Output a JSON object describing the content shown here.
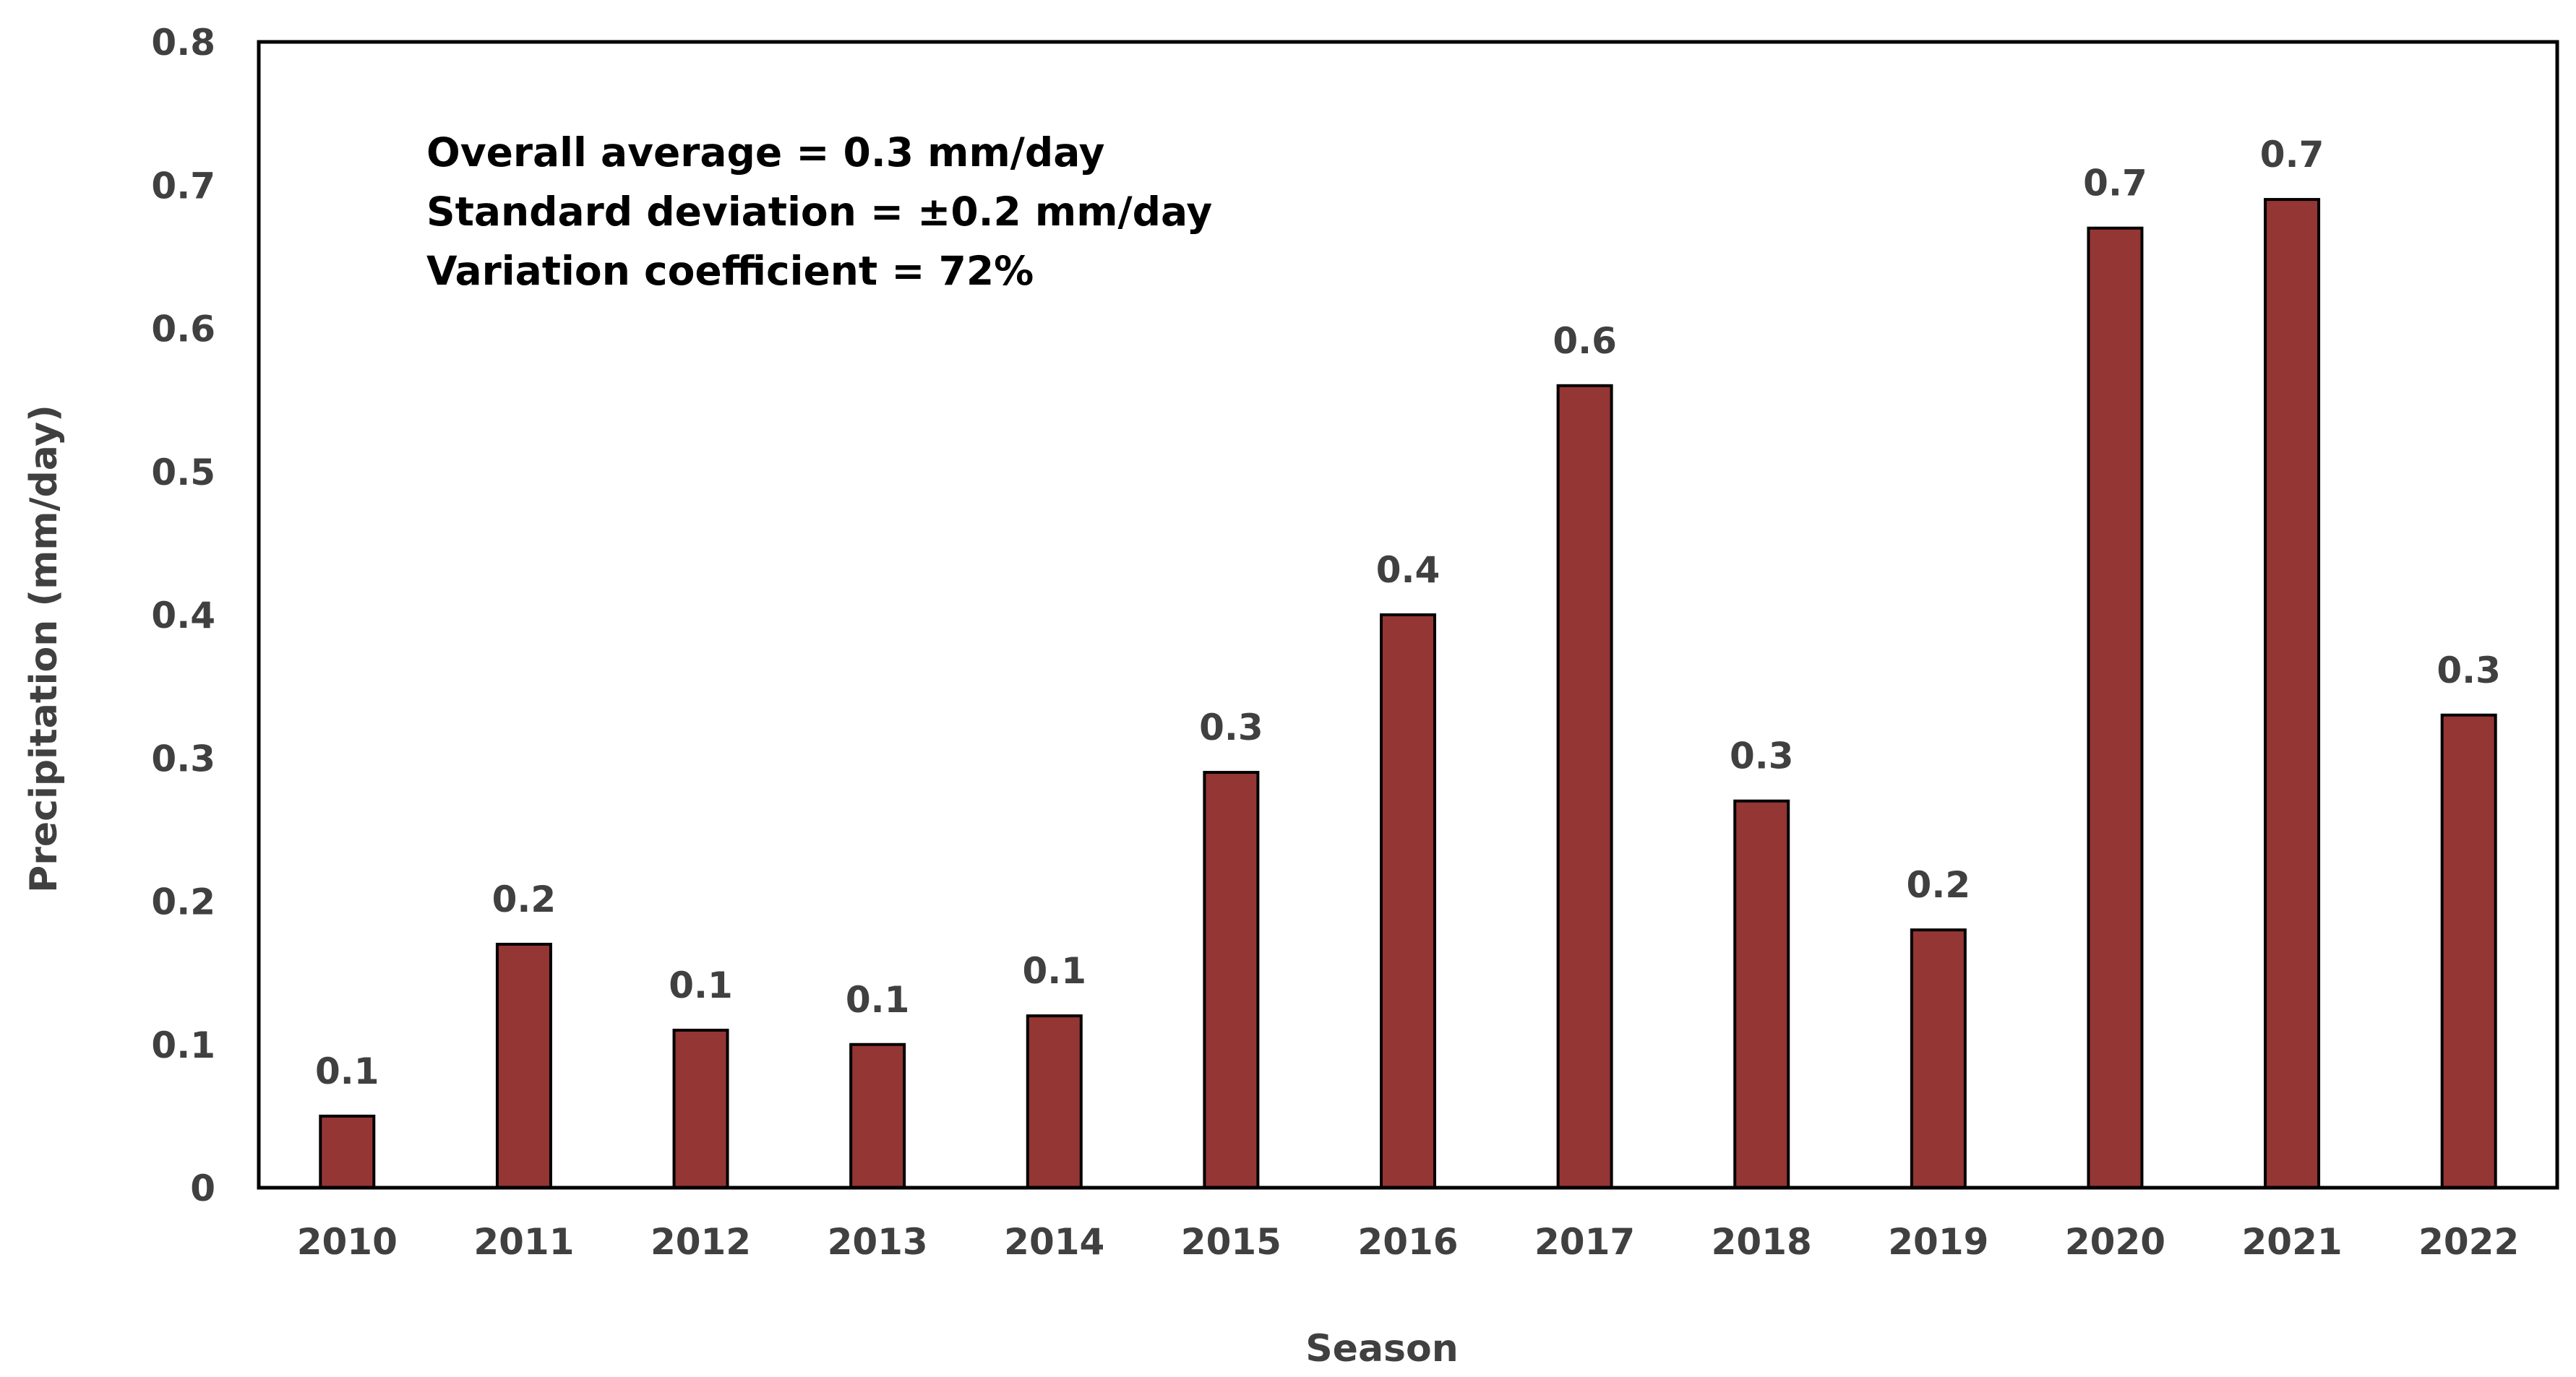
{
  "chart_data": {
    "type": "bar",
    "title": "",
    "xlabel": "Season",
    "ylabel": "Precipitation (mm/day)",
    "ylim": [
      0,
      0.8
    ],
    "yticks": [
      "0",
      "0.1",
      "0.2",
      "0.3",
      "0.4",
      "0.5",
      "0.6",
      "0.7",
      "0.8"
    ],
    "grid": false,
    "categories": [
      "2010",
      "2011",
      "2012",
      "2013",
      "2014",
      "2015",
      "2016",
      "2017",
      "2018",
      "2019",
      "2020",
      "2021",
      "2022"
    ],
    "values": [
      0.05,
      0.17,
      0.11,
      0.1,
      0.12,
      0.29,
      0.4,
      0.56,
      0.27,
      0.18,
      0.67,
      0.69,
      0.33
    ],
    "data_labels": [
      "0.1",
      "0.2",
      "0.1",
      "0.1",
      "0.1",
      "0.3",
      "0.4",
      "0.6",
      "0.3",
      "0.2",
      "0.7",
      "0.7",
      "0.3"
    ],
    "bar_color": "#943634",
    "annotations": [
      "Overall  average  = 0.3 mm/day",
      "Standard deviation = ±0.2 mm/day",
      "Variation coefficient = 72%"
    ]
  },
  "colors": {
    "text": "#404040",
    "axis": "#000000"
  }
}
